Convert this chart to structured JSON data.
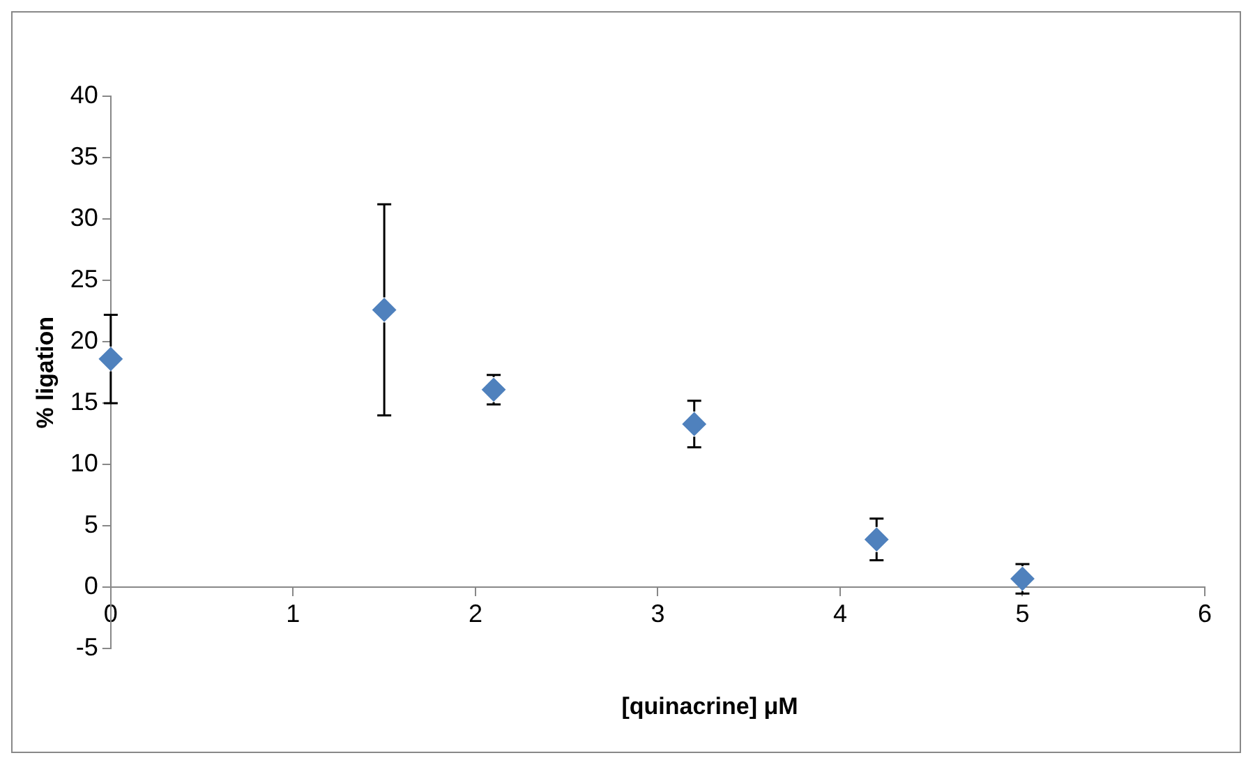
{
  "chart_data": {
    "type": "scatter",
    "xlabel": "[quinacrine] μM",
    "ylabel": "% ligation",
    "x": [
      0,
      1.5,
      2.1,
      3.2,
      4.2,
      5
    ],
    "values": [
      18.6,
      22.6,
      16.1,
      13.3,
      3.9,
      0.7
    ],
    "errors": [
      3.6,
      8.6,
      1.2,
      1.9,
      1.7,
      1.2
    ],
    "color": "#4f81bd",
    "marker": "diamond",
    "grid": false,
    "legend": false,
    "xlim": [
      0,
      6
    ],
    "xticks": [
      0,
      1,
      2,
      3,
      4,
      5,
      6
    ],
    "ylim": [
      -5,
      40
    ],
    "yticks": [
      -5,
      0,
      5,
      10,
      15,
      20,
      25,
      30,
      35,
      40
    ]
  }
}
